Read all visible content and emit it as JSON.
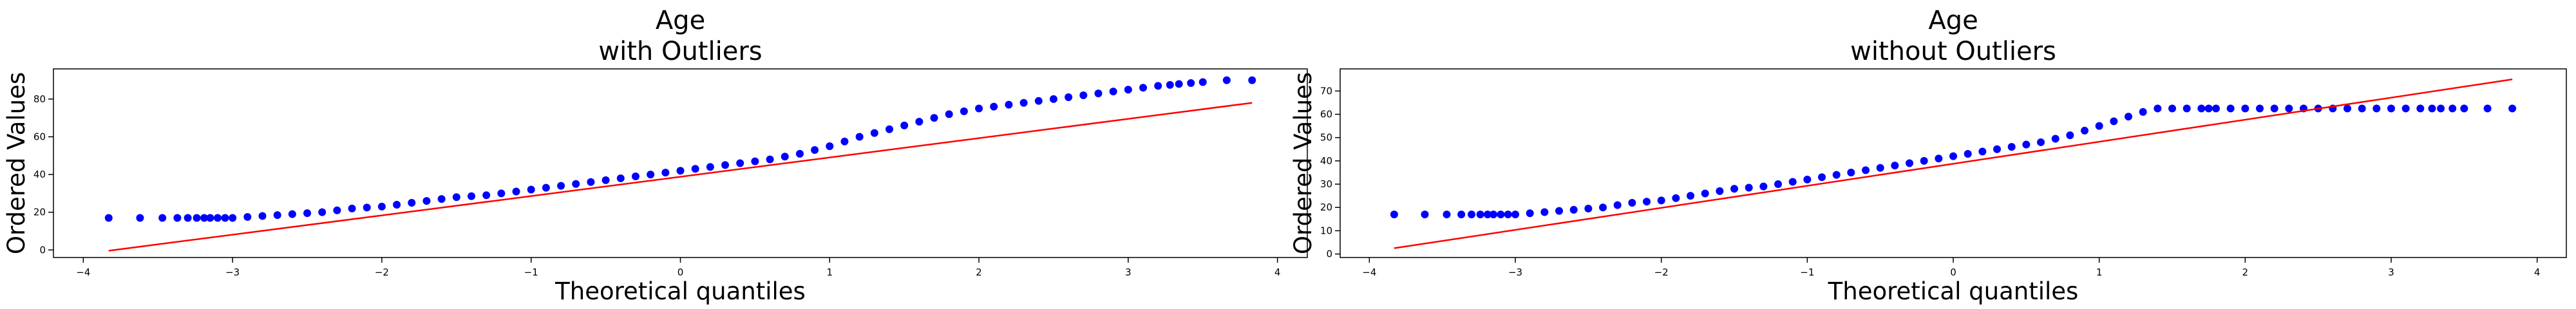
{
  "chart_data": [
    {
      "type": "scatter",
      "title": [
        "Age",
        "with Outliers"
      ],
      "xlabel": "Theoretical quantiles",
      "ylabel": "Ordered Values",
      "xlim": [
        -4.2,
        4.2
      ],
      "ylim": [
        -4,
        96
      ],
      "xticks": [
        -4,
        -3,
        -2,
        -1,
        0,
        1,
        2,
        3,
        4
      ],
      "yticks": [
        0,
        20,
        40,
        60,
        80
      ],
      "grid": false,
      "legend": "none",
      "point_color": "#0000ff",
      "line_color": "#ff0000",
      "fit_line": {
        "x": [
          -3.83,
          3.83
        ],
        "y": [
          -0.4,
          78
        ]
      },
      "points": {
        "x": [
          -3.83,
          -3.62,
          -3.47,
          -3.37,
          -3.3,
          -3.24,
          -3.19,
          -3.15,
          -3.1,
          -3.05,
          -3.0,
          -2.9,
          -2.8,
          -2.7,
          -2.6,
          -2.5,
          -2.4,
          -2.3,
          -2.2,
          -2.1,
          -2.0,
          -1.9,
          -1.8,
          -1.7,
          -1.6,
          -1.5,
          -1.4,
          -1.3,
          -1.2,
          -1.1,
          -1.0,
          -0.9,
          -0.8,
          -0.7,
          -0.6,
          -0.5,
          -0.4,
          -0.3,
          -0.2,
          -0.1,
          0.0,
          0.1,
          0.2,
          0.3,
          0.4,
          0.5,
          0.6,
          0.7,
          0.8,
          0.9,
          1.0,
          1.1,
          1.2,
          1.3,
          1.4,
          1.5,
          1.6,
          1.7,
          1.8,
          1.9,
          2.0,
          2.1,
          2.2,
          2.3,
          2.4,
          2.5,
          2.6,
          2.7,
          2.8,
          2.9,
          3.0,
          3.1,
          3.2,
          3.28,
          3.34,
          3.42,
          3.5,
          3.66,
          3.83
        ],
        "y": [
          17,
          17,
          17,
          17,
          17,
          17,
          17,
          17,
          17,
          17,
          17,
          17.5,
          18,
          18.5,
          19,
          19.5,
          20,
          21,
          22,
          22.5,
          23,
          24,
          25,
          26,
          27,
          28,
          28.5,
          29,
          30,
          31,
          32,
          33,
          34,
          35,
          36,
          37,
          38,
          39,
          40,
          41,
          42,
          43,
          44,
          45,
          46,
          47,
          48,
          49.5,
          51,
          53,
          55,
          57.5,
          60,
          62,
          64,
          66,
          68,
          70,
          72,
          73.5,
          75,
          76,
          77,
          78,
          79,
          80,
          81,
          82,
          83,
          84,
          85,
          86,
          87,
          87.5,
          88,
          88.5,
          89,
          90,
          90
        ]
      }
    },
    {
      "type": "scatter",
      "title": [
        "Age",
        "without Outliers"
      ],
      "xlabel": "Theoretical quantiles",
      "ylabel": "Ordered Values",
      "xlim": [
        -4.2,
        4.2
      ],
      "ylim": [
        -1.5,
        79.5
      ],
      "xticks": [
        -4,
        -3,
        -2,
        -1,
        0,
        1,
        2,
        3,
        4
      ],
      "yticks": [
        0,
        10,
        20,
        30,
        40,
        50,
        60,
        70
      ],
      "grid": false,
      "legend": "none",
      "point_color": "#0000ff",
      "line_color": "#ff0000",
      "fit_line": {
        "x": [
          -3.83,
          3.83
        ],
        "y": [
          2.5,
          75
        ]
      },
      "points": {
        "x": [
          -3.83,
          -3.62,
          -3.47,
          -3.37,
          -3.3,
          -3.24,
          -3.19,
          -3.15,
          -3.1,
          -3.05,
          -3.0,
          -2.9,
          -2.8,
          -2.7,
          -2.6,
          -2.5,
          -2.4,
          -2.3,
          -2.2,
          -2.1,
          -2.0,
          -1.9,
          -1.8,
          -1.7,
          -1.6,
          -1.5,
          -1.4,
          -1.3,
          -1.2,
          -1.1,
          -1.0,
          -0.9,
          -0.8,
          -0.7,
          -0.6,
          -0.5,
          -0.4,
          -0.3,
          -0.2,
          -0.1,
          0.0,
          0.1,
          0.2,
          0.3,
          0.4,
          0.5,
          0.6,
          0.7,
          0.8,
          0.9,
          1.0,
          1.1,
          1.2,
          1.3,
          1.4,
          1.5,
          1.6,
          1.7,
          1.75,
          1.8,
          1.9,
          2.0,
          2.1,
          2.2,
          2.3,
          2.4,
          2.5,
          2.6,
          2.7,
          2.8,
          2.9,
          3.0,
          3.1,
          3.2,
          3.28,
          3.34,
          3.42,
          3.5,
          3.66,
          3.83
        ],
        "y": [
          17,
          17,
          17,
          17,
          17,
          17,
          17,
          17,
          17,
          17,
          17,
          17.5,
          18,
          18.5,
          19,
          19.5,
          20,
          21,
          22,
          22.5,
          23,
          24,
          25,
          26,
          27,
          28,
          28.5,
          29,
          30,
          31,
          32,
          33,
          34,
          35,
          36,
          37,
          38,
          39,
          40,
          41,
          42,
          43,
          44,
          45,
          46,
          47,
          48,
          49.5,
          51,
          53,
          55,
          57,
          59,
          61,
          62.5,
          62.5,
          62.5,
          62.5,
          62.5,
          62.5,
          62.5,
          62.5,
          62.5,
          62.5,
          62.5,
          62.5,
          62.5,
          62.5,
          62.5,
          62.5,
          62.5,
          62.5,
          62.5,
          62.5,
          62.5,
          62.5,
          62.5,
          62.5,
          62.5,
          62.5
        ]
      }
    }
  ]
}
